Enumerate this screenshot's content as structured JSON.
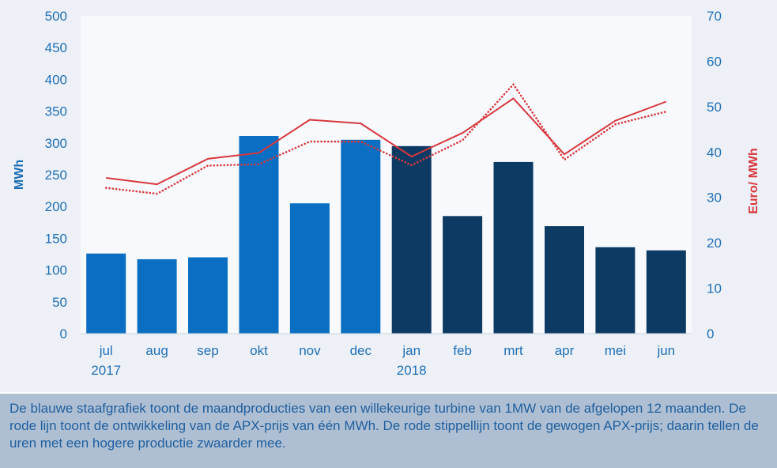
{
  "chart_data": {
    "type": "bar",
    "categories": [
      "jul",
      "aug",
      "sep",
      "okt",
      "nov",
      "dec",
      "jan",
      "feb",
      "mrt",
      "apr",
      "mei",
      "jun"
    ],
    "year_labels": [
      "2017",
      "",
      "",
      "",
      "",
      "",
      "2018",
      "",
      "",
      "",
      "",
      ""
    ],
    "bars": {
      "values": [
        126,
        117,
        120,
        311,
        205,
        305,
        295,
        185,
        270,
        169,
        136,
        131
      ],
      "colors": [
        "#0a6fc2",
        "#0a6fc2",
        "#0a6fc2",
        "#0a6fc2",
        "#0a6fc2",
        "#0a6fc2",
        "#0d3a63",
        "#0d3a63",
        "#0d3a63",
        "#0d3a63",
        "#0d3a63",
        "#0d3a63"
      ]
    },
    "series": [
      {
        "style": "solid",
        "color": "#d8373c",
        "values": [
          34.3,
          32.9,
          38.5,
          39.8,
          47.1,
          46.3,
          39.0,
          44.2,
          51.8,
          39.5,
          46.9,
          51.1
        ]
      },
      {
        "style": "dotted",
        "color": "#d8373c",
        "values": [
          32.1,
          30.8,
          37.0,
          37.3,
          42.3,
          42.3,
          37.1,
          42.6,
          54.9,
          38.3,
          46.1,
          48.9
        ]
      }
    ],
    "ylabel": "MWh",
    "y2label": "Euro/ MWh",
    "ylim": [
      0,
      500
    ],
    "y2lim": [
      0,
      70
    ],
    "yticks": [
      0,
      50,
      100,
      150,
      200,
      250,
      300,
      350,
      400,
      450,
      500
    ],
    "y2ticks": [
      0,
      10,
      20,
      30,
      40,
      50,
      60,
      70
    ],
    "grid": false,
    "legend": "none"
  },
  "caption": "De blauwe staafgrafiek toont de maandproducties van een willekeurige turbine van 1MW van de afgelopen 12 maanden. De rode lijn toont de ontwikkeling van de APX-prijs van één MWh. De rode stippellijn toont de gewogen APX-prijs; daarin tellen de uren met een hogere productie zwaarder mee."
}
